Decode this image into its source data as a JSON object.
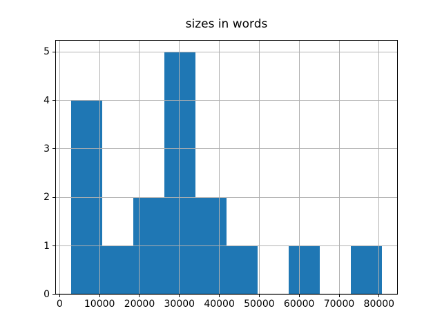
{
  "chart_data": {
    "type": "bar",
    "chart_kind": "histogram",
    "title": "sizes in words",
    "bin_edges": [
      2800,
      10600,
      18400,
      26200,
      34000,
      41800,
      49600,
      57400,
      65200,
      73000,
      80800
    ],
    "counts": [
      4,
      1,
      2,
      5,
      2,
      1,
      0,
      1,
      0,
      1
    ],
    "xlabel": "",
    "ylabel": "",
    "xlim": [
      -1100,
      84700
    ],
    "ylim": [
      0,
      5.25
    ],
    "xticks": [
      0,
      10000,
      20000,
      30000,
      40000,
      50000,
      60000,
      70000,
      80000
    ],
    "xtick_labels": [
      "0",
      "10000",
      "20000",
      "30000",
      "40000",
      "50000",
      "60000",
      "70000",
      "80000"
    ],
    "yticks": [
      0,
      1,
      2,
      3,
      4,
      5
    ],
    "ytick_labels": [
      "0",
      "1",
      "2",
      "3",
      "4",
      "5"
    ],
    "grid": true,
    "grid_above_bars": true,
    "legend_position": "none",
    "colors": {
      "bar": "#1f77b4",
      "grid": "#b0b0b0",
      "spine": "#000000",
      "text": "#000000",
      "background": "#ffffff"
    }
  }
}
